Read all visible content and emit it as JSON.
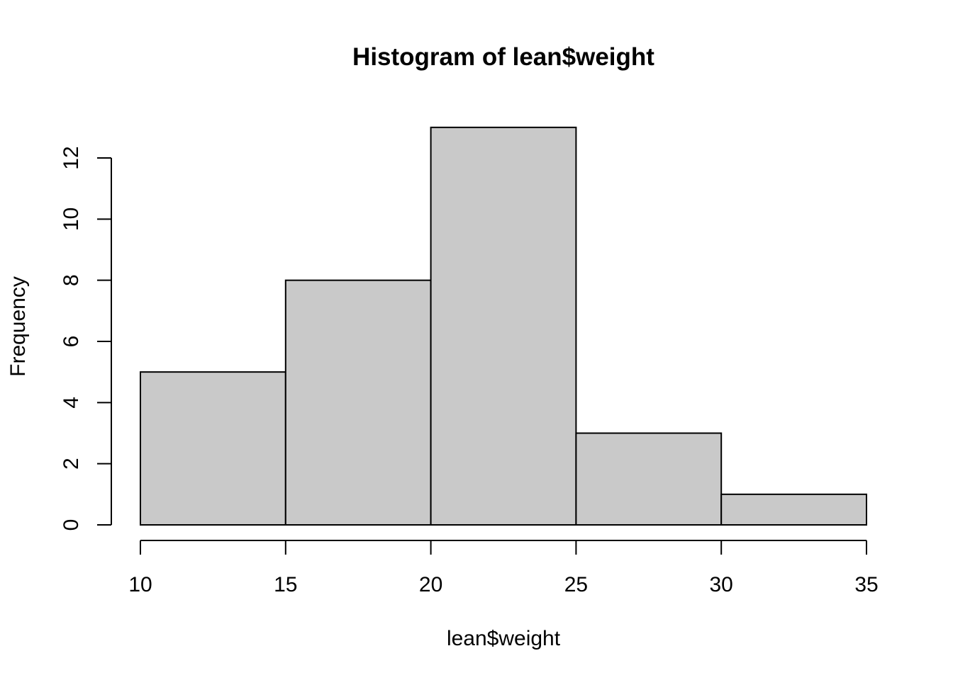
{
  "chart_data": {
    "type": "bar",
    "title": "Histogram of lean$weight",
    "xlabel": "lean$weight",
    "ylabel": "Frequency",
    "bins": [
      {
        "start": 10,
        "end": 15,
        "count": 5
      },
      {
        "start": 15,
        "end": 20,
        "count": 8
      },
      {
        "start": 20,
        "end": 25,
        "count": 13
      },
      {
        "start": 25,
        "end": 30,
        "count": 3
      },
      {
        "start": 30,
        "end": 35,
        "count": 1
      }
    ],
    "xlim": [
      10,
      35
    ],
    "ylim": [
      0,
      12
    ],
    "x_ticks": [
      10,
      15,
      20,
      25,
      30,
      35
    ],
    "y_ticks": [
      0,
      2,
      4,
      6,
      8,
      10,
      12
    ],
    "bar_color": "#c9c9c9",
    "border_color": "#000000",
    "grid": false,
    "legend": "none"
  }
}
